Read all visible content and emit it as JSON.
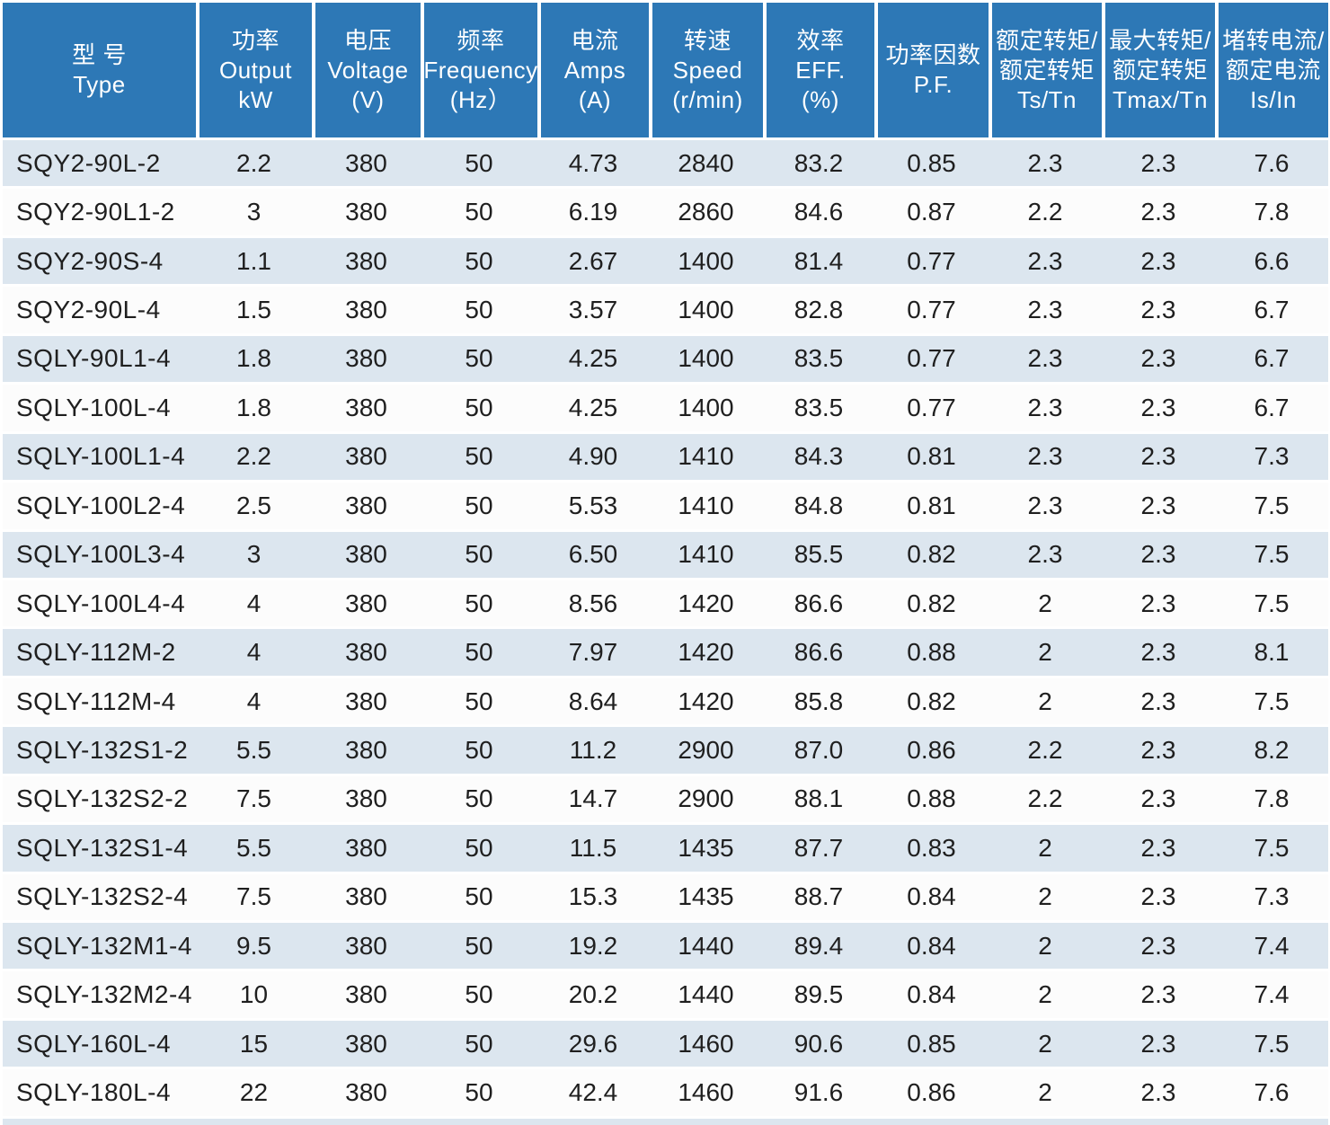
{
  "colors": {
    "header_bg": "#2d78b6",
    "stripe_bg": "#dce6ef",
    "plain_bg": "#fcfcfc",
    "text": "#1f1f1f",
    "header_text": "#ffffff"
  },
  "chart_data": {
    "type": "table",
    "title": "",
    "columns": [
      "型 号\nType",
      "功率\nOutput\nkW",
      "电压\nVoltage\n(V)",
      "频率\nFrequency\n(Hz）",
      "电流\nAmps\n(A)",
      "转速\nSpeed\n(r/min)",
      "效率\nEFF.\n(%)",
      "功率因数\nP.F.",
      "额定转矩/\n额定转矩\nTs/Tn",
      "最大转矩/\n额定转矩\nTmax/Tn",
      "堵转电流/\n额定电流\nIs/In"
    ],
    "rows": [
      [
        "SQY2-90L-2",
        "2.2",
        "380",
        "50",
        "4.73",
        "2840",
        "83.2",
        "0.85",
        "2.3",
        "2.3",
        "7.6"
      ],
      [
        "SQY2-90L1-2",
        "3",
        "380",
        "50",
        "6.19",
        "2860",
        "84.6",
        "0.87",
        "2.2",
        "2.3",
        "7.8"
      ],
      [
        "SQY2-90S-4",
        "1.1",
        "380",
        "50",
        "2.67",
        "1400",
        "81.4",
        "0.77",
        "2.3",
        "2.3",
        "6.6"
      ],
      [
        "SQY2-90L-4",
        "1.5",
        "380",
        "50",
        "3.57",
        "1400",
        "82.8",
        "0.77",
        "2.3",
        "2.3",
        "6.7"
      ],
      [
        "SQLY-90L1-4",
        "1.8",
        "380",
        "50",
        "4.25",
        "1400",
        "83.5",
        "0.77",
        "2.3",
        "2.3",
        "6.7"
      ],
      [
        "SQLY-100L-4",
        "1.8",
        "380",
        "50",
        "4.25",
        "1400",
        "83.5",
        "0.77",
        "2.3",
        "2.3",
        "6.7"
      ],
      [
        "SQLY-100L1-4",
        "2.2",
        "380",
        "50",
        "4.90",
        "1410",
        "84.3",
        "0.81",
        "2.3",
        "2.3",
        "7.3"
      ],
      [
        "SQLY-100L2-4",
        "2.5",
        "380",
        "50",
        "5.53",
        "1410",
        "84.8",
        "0.81",
        "2.3",
        "2.3",
        "7.5"
      ],
      [
        "SQLY-100L3-4",
        "3",
        "380",
        "50",
        "6.50",
        "1410",
        "85.5",
        "0.82",
        "2.3",
        "2.3",
        "7.5"
      ],
      [
        "SQLY-100L4-4",
        "4",
        "380",
        "50",
        "8.56",
        "1420",
        "86.6",
        "0.82",
        "2",
        "2.3",
        "7.5"
      ],
      [
        "SQLY-112M-2",
        "4",
        "380",
        "50",
        "7.97",
        "1420",
        "86.6",
        "0.88",
        "2",
        "2.3",
        "8.1"
      ],
      [
        "SQLY-112M-4",
        "4",
        "380",
        "50",
        "8.64",
        "1420",
        "85.8",
        "0.82",
        "2",
        "2.3",
        "7.5"
      ],
      [
        "SQLY-132S1-2",
        "5.5",
        "380",
        "50",
        "11.2",
        "2900",
        "87.0",
        "0.86",
        "2.2",
        "2.3",
        "8.2"
      ],
      [
        "SQLY-132S2-2",
        "7.5",
        "380",
        "50",
        "14.7",
        "2900",
        "88.1",
        "0.88",
        "2.2",
        "2.3",
        "7.8"
      ],
      [
        "SQLY-132S1-4",
        "5.5",
        "380",
        "50",
        "11.5",
        "1435",
        "87.7",
        "0.83",
        "2",
        "2.3",
        "7.5"
      ],
      [
        "SQLY-132S2-4",
        "7.5",
        "380",
        "50",
        "15.3",
        "1435",
        "88.7",
        "0.84",
        "2",
        "2.3",
        "7.3"
      ],
      [
        "SQLY-132M1-4",
        "9.5",
        "380",
        "50",
        "19.2",
        "1440",
        "89.4",
        "0.84",
        "2",
        "2.3",
        "7.4"
      ],
      [
        "SQLY-132M2-4",
        "10",
        "380",
        "50",
        "20.2",
        "1440",
        "89.5",
        "0.84",
        "2",
        "2.3",
        "7.4"
      ],
      [
        "SQLY-160L-4",
        "15",
        "380",
        "50",
        "29.6",
        "1460",
        "90.6",
        "0.85",
        "2",
        "2.3",
        "7.5"
      ],
      [
        "SQLY-180L-4",
        "22",
        "380",
        "50",
        "42.4",
        "1460",
        "91.6",
        "0.86",
        "2",
        "2.3",
        "7.6"
      ]
    ]
  }
}
